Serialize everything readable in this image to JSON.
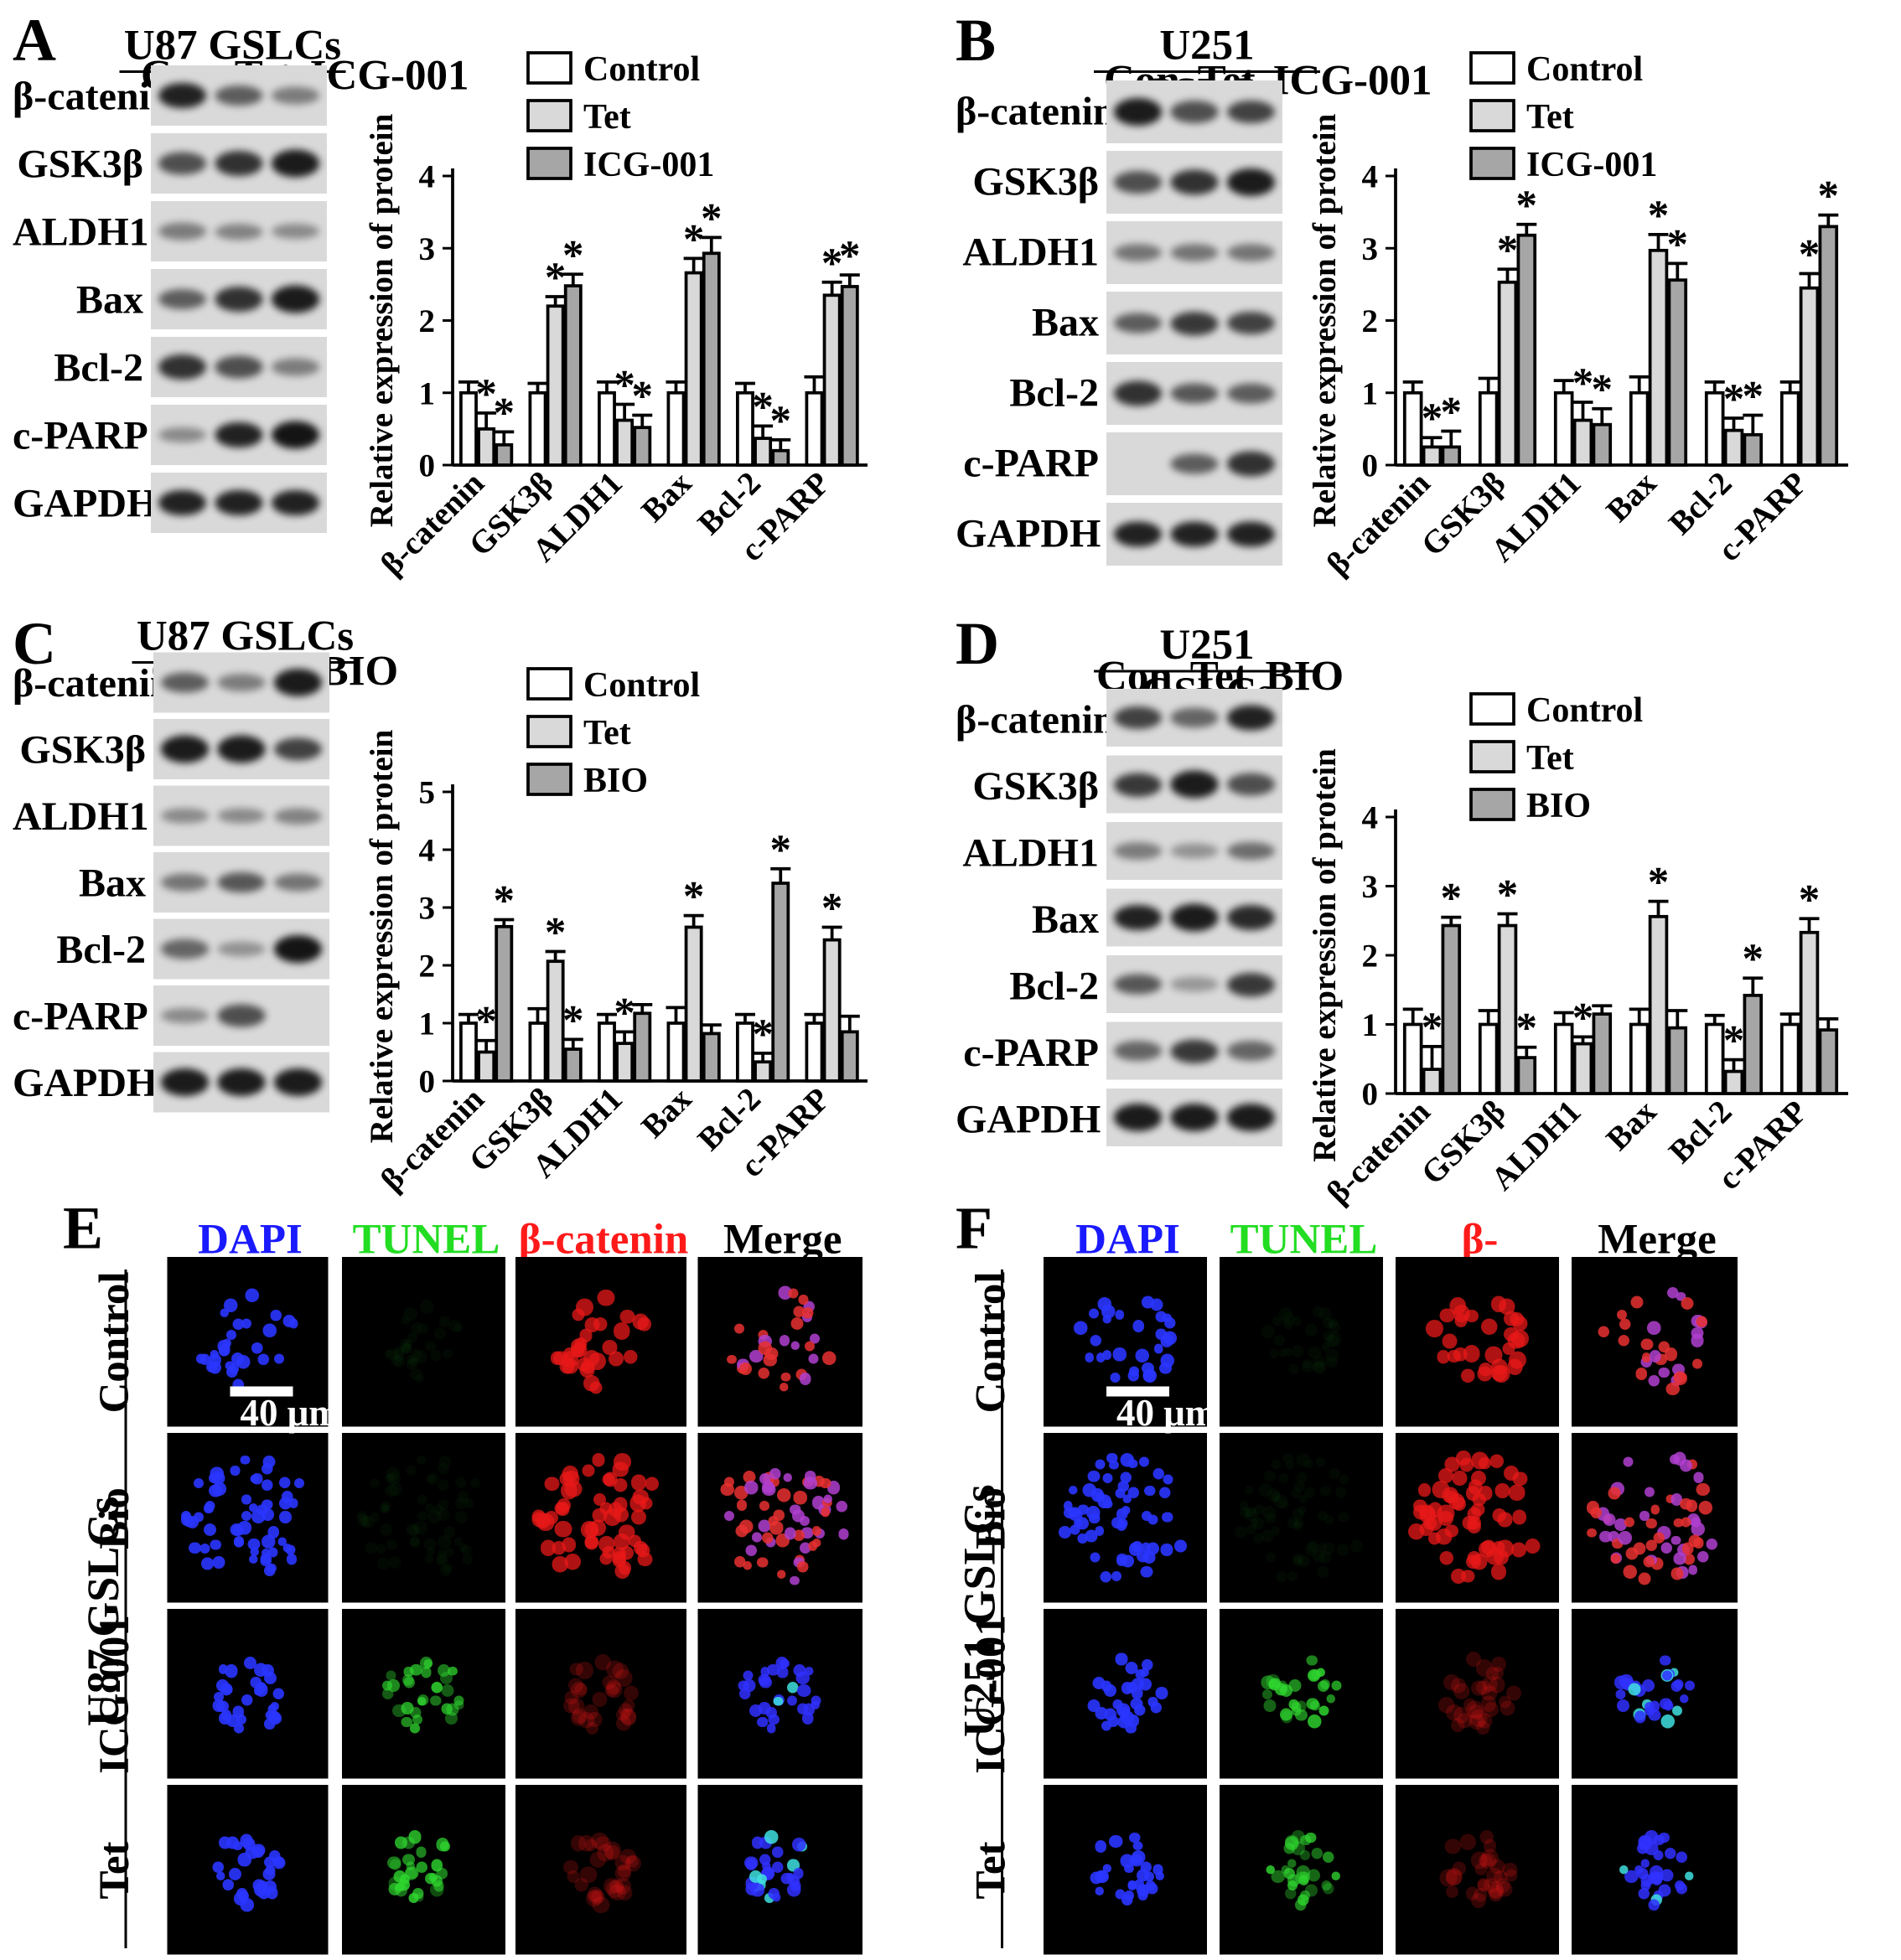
{
  "figure": {
    "panels": [
      {
        "id": "A",
        "letter": "A",
        "cell": "U87 GSLCs",
        "lanes": [
          "Con",
          "Tet",
          "ICG-001"
        ]
      },
      {
        "id": "B",
        "letter": "B",
        "cell": "U251 GSLCs",
        "lanes": [
          "Con",
          "Tet",
          "ICG-001"
        ]
      },
      {
        "id": "C",
        "letter": "C",
        "cell": "U87 GSLCs",
        "lanes": [
          "Con",
          "Tet",
          "BIO"
        ]
      },
      {
        "id": "D",
        "letter": "D",
        "cell": "U251 GSLCs",
        "lanes": [
          "Con",
          "Tet",
          "BIO"
        ]
      }
    ],
    "proteins": [
      "β-catenin",
      "GSK3β",
      "ALDH1",
      "Bax",
      "Bcl-2",
      "c-PARP",
      "GAPDH"
    ],
    "band_intensity": {
      "A": [
        [
          0.9,
          0.5,
          0.3
        ],
        [
          0.6,
          0.8,
          0.95
        ],
        [
          0.3,
          0.25,
          0.2
        ],
        [
          0.5,
          0.8,
          0.95
        ],
        [
          0.8,
          0.6,
          0.3
        ],
        [
          0.2,
          0.9,
          1.0
        ],
        [
          0.9,
          0.9,
          0.9
        ]
      ],
      "B": [
        [
          0.95,
          0.6,
          0.7
        ],
        [
          0.6,
          0.8,
          0.95
        ],
        [
          0.35,
          0.35,
          0.35
        ],
        [
          0.5,
          0.75,
          0.7
        ],
        [
          0.8,
          0.55,
          0.5
        ],
        [
          0.0,
          0.5,
          0.8
        ],
        [
          0.9,
          0.9,
          0.9
        ]
      ],
      "C": [
        [
          0.5,
          0.3,
          0.95
        ],
        [
          0.95,
          0.95,
          0.7
        ],
        [
          0.2,
          0.2,
          0.25
        ],
        [
          0.35,
          0.55,
          0.35
        ],
        [
          0.45,
          0.15,
          1.0
        ],
        [
          0.2,
          0.6,
          0.0
        ],
        [
          0.95,
          0.95,
          0.95
        ]
      ],
      "D": [
        [
          0.7,
          0.45,
          0.9
        ],
        [
          0.75,
          0.95,
          0.6
        ],
        [
          0.3,
          0.15,
          0.4
        ],
        [
          0.9,
          0.95,
          0.85
        ],
        [
          0.55,
          0.1,
          0.75
        ],
        [
          0.45,
          0.75,
          0.45
        ],
        [
          0.95,
          0.95,
          0.95
        ]
      ]
    },
    "micro": {
      "E": {
        "letter": "E",
        "side_label": "U87 GSLCs",
        "scale": "40 μm"
      },
      "F": {
        "letter": "F",
        "side_label": "U251 GSLCs",
        "scale": "40 μm"
      },
      "channels": [
        "DAPI",
        "TUNEL",
        "β-catenin",
        "Merge"
      ],
      "channel_colors": [
        "#1a1aff",
        "#22dd22",
        "#ff1a1a",
        "#000000"
      ],
      "rows": [
        "Control",
        "Bio",
        "ICG-001",
        "Tet"
      ]
    }
  },
  "chart_data": [
    {
      "type": "bar",
      "panel": "A",
      "ylabel": "Relative expression of protein",
      "ylim": [
        0,
        4
      ],
      "yticks": [
        0,
        1,
        2,
        3,
        4
      ],
      "categories": [
        "β-catenin",
        "GSK3β",
        "ALDH1",
        "Bax",
        "Bcl-2",
        "c-PARP"
      ],
      "legend_position": "top-left",
      "series": [
        {
          "name": "Control",
          "color": "#ffffff",
          "values": [
            1.0,
            1.0,
            1.0,
            1.0,
            1.0,
            1.0
          ],
          "errors": [
            0.15,
            0.13,
            0.15,
            0.15,
            0.13,
            0.22
          ],
          "sig": [
            false,
            false,
            false,
            false,
            false,
            false
          ]
        },
        {
          "name": "Tet",
          "color": "#d9d9d9",
          "values": [
            0.5,
            2.2,
            0.62,
            2.66,
            0.37,
            2.35
          ],
          "errors": [
            0.22,
            0.13,
            0.22,
            0.2,
            0.17,
            0.18
          ],
          "sig": [
            true,
            true,
            true,
            true,
            true,
            true
          ]
        },
        {
          "name": "ICG-001",
          "color": "#a6a6a6",
          "values": [
            0.28,
            2.48,
            0.52,
            2.93,
            0.2,
            2.47
          ],
          "errors": [
            0.18,
            0.16,
            0.17,
            0.22,
            0.15,
            0.16
          ],
          "sig": [
            true,
            true,
            true,
            true,
            true,
            true
          ]
        }
      ]
    },
    {
      "type": "bar",
      "panel": "B",
      "ylabel": "Relative expression of protein",
      "ylim": [
        0,
        4
      ],
      "yticks": [
        0,
        1,
        2,
        3,
        4
      ],
      "categories": [
        "β-catenin",
        "GSK3β",
        "ALDH1",
        "Bax",
        "Bcl-2",
        "c-PARP"
      ],
      "legend_position": "top-left",
      "series": [
        {
          "name": "Control",
          "color": "#ffffff",
          "values": [
            1.0,
            1.0,
            1.0,
            1.0,
            1.0,
            1.0
          ],
          "errors": [
            0.15,
            0.2,
            0.17,
            0.22,
            0.15,
            0.15
          ],
          "sig": [
            false,
            false,
            false,
            false,
            false,
            false
          ]
        },
        {
          "name": "Tet",
          "color": "#d9d9d9",
          "values": [
            0.25,
            2.53,
            0.62,
            2.97,
            0.48,
            2.45
          ],
          "errors": [
            0.13,
            0.18,
            0.25,
            0.22,
            0.17,
            0.2
          ],
          "sig": [
            true,
            true,
            true,
            true,
            true,
            true
          ]
        },
        {
          "name": "ICG-001",
          "color": "#a6a6a6",
          "values": [
            0.25,
            3.18,
            0.56,
            2.56,
            0.42,
            3.3
          ],
          "errors": [
            0.22,
            0.15,
            0.22,
            0.23,
            0.27,
            0.16
          ],
          "sig": [
            true,
            true,
            true,
            true,
            true,
            true
          ]
        }
      ]
    },
    {
      "type": "bar",
      "panel": "C",
      "ylabel": "Relative expression of protein",
      "ylim": [
        0,
        5
      ],
      "yticks": [
        0,
        1,
        2,
        3,
        4,
        5
      ],
      "categories": [
        "β-catenin",
        "GSK3β",
        "ALDH1",
        "Bax",
        "Bcl-2",
        "c-PARP"
      ],
      "legend_position": "top-left",
      "series": [
        {
          "name": "Control",
          "color": "#ffffff",
          "values": [
            1.0,
            1.0,
            1.0,
            1.0,
            1.0,
            1.0
          ],
          "errors": [
            0.15,
            0.25,
            0.15,
            0.27,
            0.15,
            0.15
          ],
          "sig": [
            false,
            false,
            false,
            false,
            false,
            false
          ]
        },
        {
          "name": "Tet",
          "color": "#d9d9d9",
          "values": [
            0.5,
            2.07,
            0.65,
            2.66,
            0.33,
            2.44
          ],
          "errors": [
            0.2,
            0.17,
            0.2,
            0.2,
            0.15,
            0.22
          ],
          "sig": [
            true,
            true,
            true,
            true,
            true,
            true
          ]
        },
        {
          "name": "BIO",
          "color": "#a6a6a6",
          "values": [
            2.67,
            0.55,
            1.17,
            0.82,
            3.42,
            0.85
          ],
          "errors": [
            0.12,
            0.17,
            0.15,
            0.15,
            0.25,
            0.27
          ],
          "sig": [
            true,
            true,
            false,
            false,
            true,
            false
          ]
        }
      ]
    },
    {
      "type": "bar",
      "panel": "D",
      "ylabel": "Relative expression of protein",
      "ylim": [
        0,
        4
      ],
      "yticks": [
        0,
        1,
        2,
        3,
        4
      ],
      "categories": [
        "β-catenin",
        "GSK3β",
        "ALDH1",
        "Bax",
        "Bcl-2",
        "c-PARP"
      ],
      "legend_position": "top-left",
      "series": [
        {
          "name": "Control",
          "color": "#ffffff",
          "values": [
            1.0,
            1.0,
            1.0,
            1.0,
            1.0,
            1.0
          ],
          "errors": [
            0.22,
            0.2,
            0.17,
            0.22,
            0.13,
            0.15
          ],
          "sig": [
            false,
            false,
            false,
            false,
            false,
            false
          ]
        },
        {
          "name": "Tet",
          "color": "#d9d9d9",
          "values": [
            0.35,
            2.43,
            0.72,
            2.56,
            0.32,
            2.33
          ],
          "errors": [
            0.33,
            0.17,
            0.1,
            0.22,
            0.17,
            0.2
          ],
          "sig": [
            true,
            true,
            true,
            true,
            true,
            true
          ]
        },
        {
          "name": "BIO",
          "color": "#a6a6a6",
          "values": [
            2.43,
            0.52,
            1.15,
            0.95,
            1.42,
            0.92
          ],
          "errors": [
            0.12,
            0.15,
            0.12,
            0.25,
            0.25,
            0.16
          ],
          "sig": [
            true,
            true,
            false,
            false,
            true,
            false
          ]
        }
      ]
    }
  ]
}
